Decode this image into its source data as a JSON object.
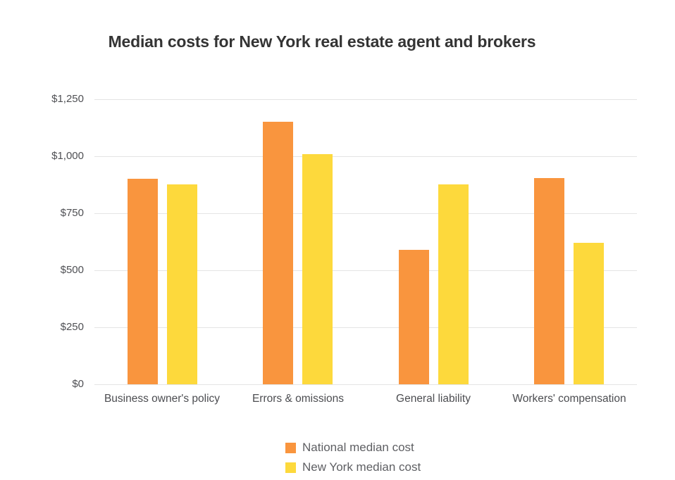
{
  "title": "Median costs for New York real estate agent and brokers",
  "chart_data": {
    "type": "bar",
    "title": "Median costs for New York real estate agent and brokers",
    "xlabel": "",
    "ylabel": "",
    "categories": [
      "Business owner's policy",
      "Errors & omissions",
      "General liability",
      "Workers' compensation"
    ],
    "series": [
      {
        "name": "National median cost",
        "color": "#F9953E",
        "values": [
          900,
          1150,
          590,
          905
        ]
      },
      {
        "name": "New York median cost",
        "color": "#FDD93C",
        "values": [
          875,
          1010,
          875,
          620
        ]
      }
    ],
    "y_axis": {
      "min": 0,
      "max": 1250,
      "tick_values": [
        0,
        250,
        500,
        750,
        1000,
        1250
      ],
      "tick_labels": [
        "$0",
        "$250",
        "$500",
        "$750",
        "$1,000",
        "$1,250"
      ],
      "prefix": "$"
    },
    "grid": true,
    "legend_position": "bottom"
  },
  "colors": {
    "national_series": "#F9953E",
    "new_york_series": "#FDD93C",
    "gridline": "#e4e4e4",
    "title_text": "#343434",
    "axis_text": "#4f5054",
    "category_text": "#4c4d51",
    "legend_text": "#5e5f63",
    "background": "#ffffff"
  }
}
